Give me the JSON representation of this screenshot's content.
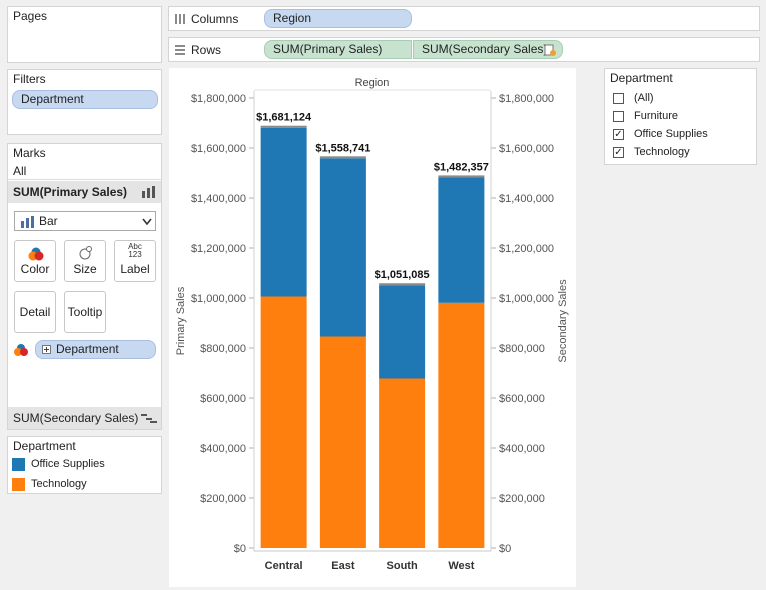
{
  "pages": {
    "title": "Pages"
  },
  "shelves": {
    "columns": {
      "label": "Columns",
      "pills": [
        "Region"
      ]
    },
    "rows": {
      "label": "Rows",
      "pills": [
        "SUM(Primary Sales)",
        "SUM(Secondary Sales)"
      ]
    }
  },
  "filters": {
    "title": "Filters",
    "pills": [
      "Department"
    ]
  },
  "marks": {
    "title": "Marks",
    "all_label": "All",
    "primary_measure": "SUM(Primary Sales)",
    "mark_type": "Bar",
    "buttons": {
      "color": "Color",
      "size": "Size",
      "label": "Label",
      "label_glyph": "Abc\n123",
      "detail": "Detail",
      "tooltip": "Tooltip"
    },
    "color_pill": "Department",
    "secondary_measure": "SUM(Secondary Sales)"
  },
  "legend": {
    "title": "Department",
    "items": [
      {
        "label": "Office Supplies",
        "color": "#1f77b4"
      },
      {
        "label": "Technology",
        "color": "#ff7f0e"
      }
    ]
  },
  "filter_card": {
    "title": "Department",
    "options": [
      {
        "label": "(All)",
        "checked": false
      },
      {
        "label": "Furniture",
        "checked": false
      },
      {
        "label": "Office Supplies",
        "checked": true
      },
      {
        "label": "Technology",
        "checked": true
      }
    ]
  },
  "chart_data": {
    "type": "bar",
    "stacked": true,
    "header": "Region",
    "categories": [
      "Central",
      "East",
      "South",
      "West"
    ],
    "series": [
      {
        "name": "Technology",
        "color": "#ff7f0e",
        "values": [
          1006000,
          846000,
          678000,
          981000
        ]
      },
      {
        "name": "Office Supplies",
        "color": "#1f77b4",
        "values": [
          675124,
          712741,
          373085,
          501357
        ]
      }
    ],
    "totals": [
      1681124,
      1558741,
      1051085,
      1482357
    ],
    "total_labels": [
      "$1,681,124",
      "$1,558,741",
      "$1,051,085",
      "$1,482,357"
    ],
    "ylabel": "Primary Sales",
    "y2label": "Secondary Sales",
    "ylim": [
      0,
      1800000
    ],
    "yticks": [
      0,
      200000,
      400000,
      600000,
      800000,
      1000000,
      1200000,
      1400000,
      1600000,
      1800000
    ],
    "ytick_labels": [
      "$0",
      "$200,000",
      "$400,000",
      "$600,000",
      "$800,000",
      "$1,000,000",
      "$1,200,000",
      "$1,400,000",
      "$1,600,000",
      "$1,800,000"
    ]
  }
}
